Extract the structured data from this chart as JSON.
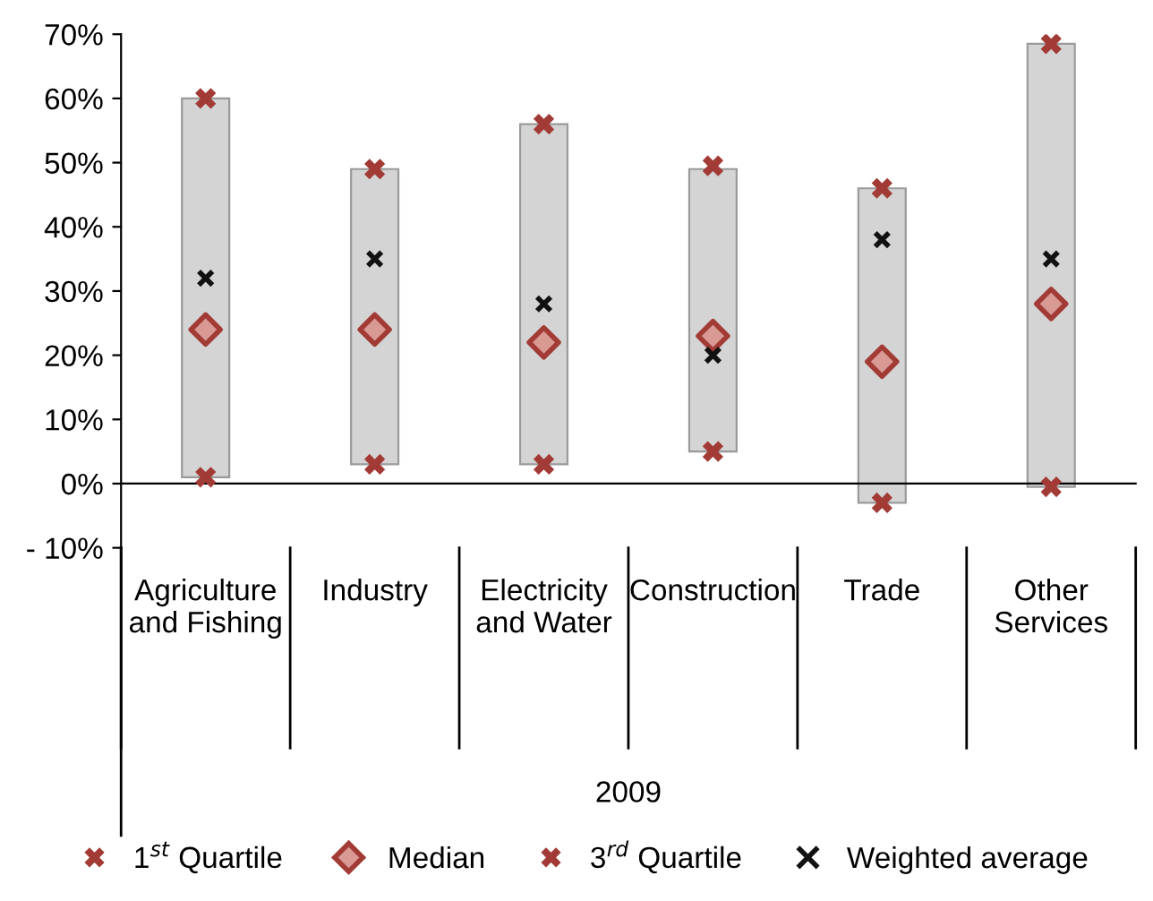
{
  "chart_data": {
    "type": "scatter",
    "categories": [
      "Agriculture\nand Fishing",
      "Industry",
      "Electricity\nand Water",
      "Construction",
      "Trade",
      "Other\nServices"
    ],
    "xlabel": "2009",
    "series": [
      {
        "type": "bar",
        "color": "#d4d4d4",
        "base": [
          1,
          3,
          3,
          5,
          -3,
          -0.5
        ],
        "values": [
          59,
          46,
          53,
          44,
          49,
          69
        ]
      },
      {
        "name": "1$^{st}$ Quartile",
        "marker": "cross",
        "color": "#a23b36",
        "values": [
          1,
          3,
          3,
          5,
          -3,
          -0.5
        ]
      },
      {
        "name": "Median",
        "marker": "diamond",
        "color": "#a23b36",
        "values": [
          24,
          24,
          22,
          23,
          19,
          28
        ]
      },
      {
        "name": "3$^{rd}$ Quartile",
        "marker": "cross",
        "color": "#a23b36",
        "values": [
          60,
          49,
          56,
          49.5,
          46,
          68.5
        ]
      },
      {
        "name": "Weighted average",
        "marker": "x",
        "color": "#111111",
        "values": [
          32,
          35,
          28,
          20,
          38,
          35
        ]
      }
    ],
    "ylim": [
      -10,
      70
    ],
    "yticks": [
      {
        "value": -10,
        "label": "- 10%"
      },
      {
        "value": 0,
        "label": "0%"
      },
      {
        "value": 10,
        "label": "10%"
      },
      {
        "value": 20,
        "label": "20%"
      },
      {
        "value": 30,
        "label": "30%"
      },
      {
        "value": 40,
        "label": "40%"
      },
      {
        "value": 50,
        "label": "50%"
      },
      {
        "value": 60,
        "label": "60%"
      },
      {
        "value": 70,
        "label": "70%"
      }
    ],
    "legend": "bottom"
  }
}
